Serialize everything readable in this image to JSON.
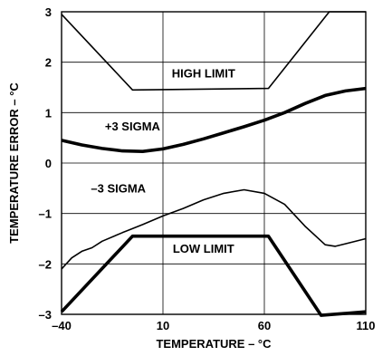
{
  "chart_data": {
    "type": "line",
    "title": "",
    "xlabel": "TEMPERATURE – °C",
    "ylabel": "TEMPERATURE ERROR – °C",
    "xlim": [
      -40,
      110
    ],
    "ylim": [
      -3,
      3
    ],
    "x_ticks": [
      -40,
      10,
      60,
      110
    ],
    "x_tick_labels": [
      "–40",
      "10",
      "60",
      "110"
    ],
    "y_ticks": [
      -3,
      -2,
      -1,
      0,
      1,
      2,
      3
    ],
    "y_tick_labels": [
      "–3",
      "–2",
      "–1",
      "0",
      "1",
      "2",
      "3"
    ],
    "grid": true,
    "series": [
      {
        "key": "high_limit",
        "name": "HIGH LIMIT",
        "weight": "thin",
        "points": [
          [
            -40,
            2.95
          ],
          [
            -5,
            1.45
          ],
          [
            62,
            1.48
          ],
          [
            92,
            3.0
          ],
          [
            110,
            3.0
          ]
        ]
      },
      {
        "key": "plus_3_sigma",
        "name": "+3 SIGMA",
        "weight": "thick",
        "points": [
          [
            -40,
            0.45
          ],
          [
            -30,
            0.36
          ],
          [
            -20,
            0.29
          ],
          [
            -10,
            0.24
          ],
          [
            0,
            0.23
          ],
          [
            10,
            0.28
          ],
          [
            20,
            0.37
          ],
          [
            30,
            0.48
          ],
          [
            40,
            0.6
          ],
          [
            50,
            0.72
          ],
          [
            60,
            0.85
          ],
          [
            70,
            1.0
          ],
          [
            80,
            1.18
          ],
          [
            90,
            1.34
          ],
          [
            100,
            1.43
          ],
          [
            110,
            1.48
          ]
        ]
      },
      {
        "key": "minus_3_sigma",
        "name": "–3 SIGMA",
        "weight": "thin",
        "points": [
          [
            -40,
            -2.1
          ],
          [
            -35,
            -1.88
          ],
          [
            -30,
            -1.75
          ],
          [
            -25,
            -1.68
          ],
          [
            -20,
            -1.55
          ],
          [
            -10,
            -1.38
          ],
          [
            0,
            -1.22
          ],
          [
            10,
            -1.05
          ],
          [
            20,
            -0.9
          ],
          [
            30,
            -0.73
          ],
          [
            40,
            -0.6
          ],
          [
            50,
            -0.53
          ],
          [
            60,
            -0.6
          ],
          [
            70,
            -0.82
          ],
          [
            80,
            -1.25
          ],
          [
            90,
            -1.62
          ],
          [
            95,
            -1.65
          ],
          [
            100,
            -1.6
          ],
          [
            110,
            -1.5
          ]
        ]
      },
      {
        "key": "low_limit",
        "name": "LOW LIMIT",
        "weight": "thick",
        "points": [
          [
            -40,
            -2.95
          ],
          [
            -5,
            -1.45
          ],
          [
            62,
            -1.45
          ],
          [
            88,
            -3.02
          ],
          [
            110,
            -2.95
          ]
        ]
      }
    ],
    "annotations": [
      {
        "text": "HIGH LIMIT",
        "x": 30,
        "y": 1.7
      },
      {
        "text": "+3 SIGMA",
        "x": -5,
        "y": 0.65
      },
      {
        "text": "–3 SIGMA",
        "x": -12,
        "y": -0.58
      },
      {
        "text": "LOW LIMIT",
        "x": 30,
        "y": -1.78
      }
    ]
  }
}
